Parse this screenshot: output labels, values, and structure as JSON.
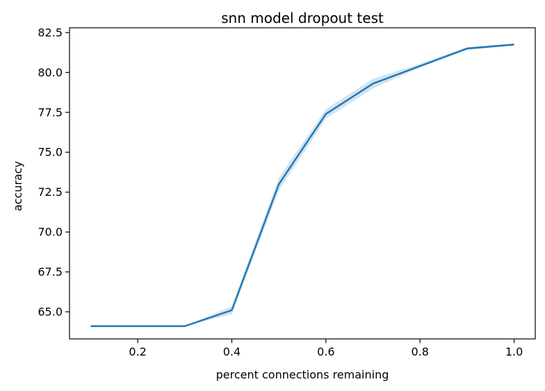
{
  "chart_data": {
    "type": "line",
    "title": "snn model dropout test",
    "xlabel": "percent connections remaining",
    "ylabel": "accuracy",
    "xlim": [
      0.055,
      1.045
    ],
    "ylim": [
      63.3,
      82.8
    ],
    "xticks": [
      {
        "value": 0.2,
        "label": "0.2"
      },
      {
        "value": 0.4,
        "label": "0.4"
      },
      {
        "value": 0.6,
        "label": "0.6"
      },
      {
        "value": 0.8,
        "label": "0.8"
      },
      {
        "value": 1.0,
        "label": "1.0"
      }
    ],
    "yticks": [
      {
        "value": 65.0,
        "label": "65.0"
      },
      {
        "value": 67.5,
        "label": "67.5"
      },
      {
        "value": 70.0,
        "label": "70.0"
      },
      {
        "value": 72.5,
        "label": "72.5"
      },
      {
        "value": 75.0,
        "label": "75.0"
      },
      {
        "value": 77.5,
        "label": "77.5"
      },
      {
        "value": 80.0,
        "label": "80.0"
      },
      {
        "value": 82.5,
        "label": "82.5"
      }
    ],
    "grid": false,
    "series": [
      {
        "color": "#1f77b4",
        "band_color": "#1f77b4",
        "x": [
          0.1,
          0.2,
          0.3,
          0.4,
          0.5,
          0.6,
          0.7,
          0.8,
          0.9,
          1.0
        ],
        "y": [
          64.1,
          64.1,
          64.1,
          65.1,
          73.0,
          77.4,
          79.3,
          80.4,
          81.5,
          81.75
        ],
        "y_lower": [
          64.1,
          64.1,
          64.1,
          64.85,
          72.6,
          77.1,
          79.0,
          80.3,
          81.4,
          81.7
        ],
        "y_upper": [
          64.1,
          64.1,
          64.1,
          65.35,
          73.4,
          77.7,
          79.6,
          80.55,
          81.6,
          81.8
        ]
      }
    ]
  }
}
